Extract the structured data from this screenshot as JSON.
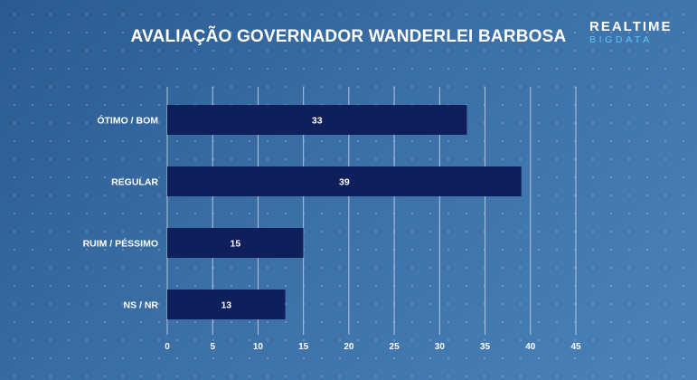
{
  "header": {
    "title": "AVALIAÇÃO GOVERNADOR WANDERLEI BARBOSA",
    "logo_line1": "REALTIME",
    "logo_line2": "BIGDATA"
  },
  "colors": {
    "bar": "#0e1f5c",
    "gridline": "#c7d6e8",
    "text": "#ffffff",
    "logo_accent": "#5ec8f2"
  },
  "chart_data": {
    "type": "bar",
    "orientation": "horizontal",
    "title": "AVALIAÇÃO GOVERNADOR WANDERLEI BARBOSA",
    "categories": [
      "ÓTIMO / BOM",
      "REGULAR",
      "RUIM / PÉSSIMO",
      "NS / NR"
    ],
    "values": [
      33,
      39,
      15,
      13
    ],
    "data_labels": [
      "33",
      "39",
      "15",
      "13"
    ],
    "xlim": [
      0,
      45
    ],
    "xticks": [
      0,
      5,
      10,
      15,
      20,
      25,
      30,
      35,
      40,
      45
    ],
    "xlabel": "",
    "ylabel": "",
    "grid": "vertical",
    "legend": "none"
  }
}
